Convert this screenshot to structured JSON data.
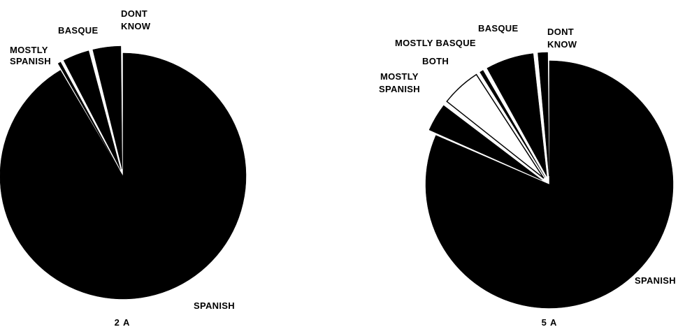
{
  "colors": {
    "slice_fill": "#000000",
    "light_slice_fill": "#ffffff",
    "background": "#ffffff"
  },
  "chart_data": [
    {
      "type": "pie",
      "caption": "2 A",
      "slices": [
        {
          "label": "SPANISH",
          "value": 91.5,
          "exploded": false
        },
        {
          "label": "MOSTLY SPANISH",
          "value": 0.7,
          "exploded": true
        },
        {
          "label": "BASQUE",
          "value": 3.8,
          "exploded": true
        },
        {
          "label": "DONT KNOW",
          "value": 4.0,
          "exploded": true
        }
      ]
    },
    {
      "type": "pie",
      "caption": "5 A",
      "slices": [
        {
          "label": "SPANISH",
          "value": 81.5,
          "exploded": false
        },
        {
          "label": "MOSTLY SPANISH",
          "value": 4.0,
          "exploded": true
        },
        {
          "label": "BOTH",
          "value": 5.5,
          "exploded": true,
          "light": true
        },
        {
          "label": "MOSTLY BASQUE",
          "value": 0.8,
          "exploded": true
        },
        {
          "label": "BASQUE",
          "value": 6.6,
          "exploded": true
        },
        {
          "label": "DONT KNOW",
          "value": 1.6,
          "exploded": true
        }
      ]
    }
  ]
}
